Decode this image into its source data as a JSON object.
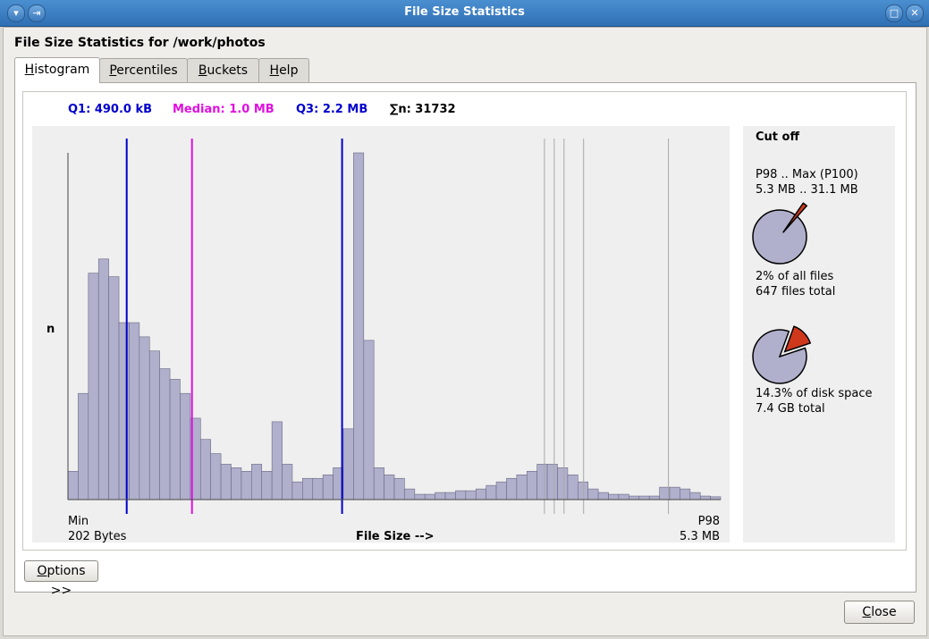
{
  "window": {
    "title": "File Size Statistics"
  },
  "heading": "File Size Statistics for /work/photos",
  "tabs": [
    {
      "label": "Histogram",
      "key": "H"
    },
    {
      "label": "Percentiles",
      "key": "P"
    },
    {
      "label": "Buckets",
      "key": "B"
    },
    {
      "label": "Help",
      "key": "H"
    }
  ],
  "stats": {
    "q1": "Q1: 490.0 kB",
    "median": "Median: 1.0 MB",
    "q3": "Q3: 2.2 MB",
    "n": "∑n: 31732"
  },
  "colors": {
    "q1": "#0000cc",
    "median": "#e010e0",
    "q3": "#0000cc",
    "bar_fill": "#b0b0cc",
    "pie_fill": "#b0b0cc",
    "slice": "#d0381c",
    "percentile_lines": "#a8a8a8"
  },
  "chart_data": {
    "type": "bar",
    "ylabel": "n",
    "xlabel": "File Size  -->",
    "x_min_label": "Min",
    "x_min_value": "202 Bytes",
    "x_max_label": "P98",
    "x_max_value": "5.3 MB",
    "values": [
      8,
      30,
      64,
      68,
      63,
      50,
      50,
      46,
      42,
      37,
      34,
      30,
      23,
      17,
      13,
      10,
      9,
      8,
      10,
      8,
      22,
      10,
      5,
      6,
      6,
      7,
      9,
      20,
      98,
      45,
      9,
      7,
      6,
      3,
      1.5,
      1.5,
      2,
      2,
      2.5,
      2.5,
      3,
      4,
      5,
      6,
      7,
      8,
      10,
      10,
      9,
      7,
      5,
      3,
      2,
      1.5,
      1.5,
      1,
      1,
      1,
      3.5,
      3.5,
      3,
      2,
      1,
      0.8
    ],
    "markers": [
      {
        "name": "Q1",
        "position": 0.09
      },
      {
        "name": "Median",
        "position": 0.19
      },
      {
        "name": "Q3",
        "position": 0.42
      }
    ],
    "percentile_lines": [
      0.73,
      0.745,
      0.76,
      0.79,
      0.92
    ]
  },
  "cutoff": {
    "title": "Cut off",
    "range_label": "P98 .. Max (P100)",
    "range_value": "5.3 MB .. 31.1 MB",
    "files_pct": "2% of all files",
    "files_total": "647 files total",
    "files_fraction": 0.02,
    "disk_pct": "14.3% of disk space",
    "disk_total": "7.4 GB total",
    "disk_fraction": 0.143
  },
  "buttons": {
    "options": {
      "label": "Options >>",
      "key": "O",
      "rest": "ptions >>"
    },
    "close": {
      "label": "Close",
      "key": "C",
      "rest": "lose"
    }
  }
}
